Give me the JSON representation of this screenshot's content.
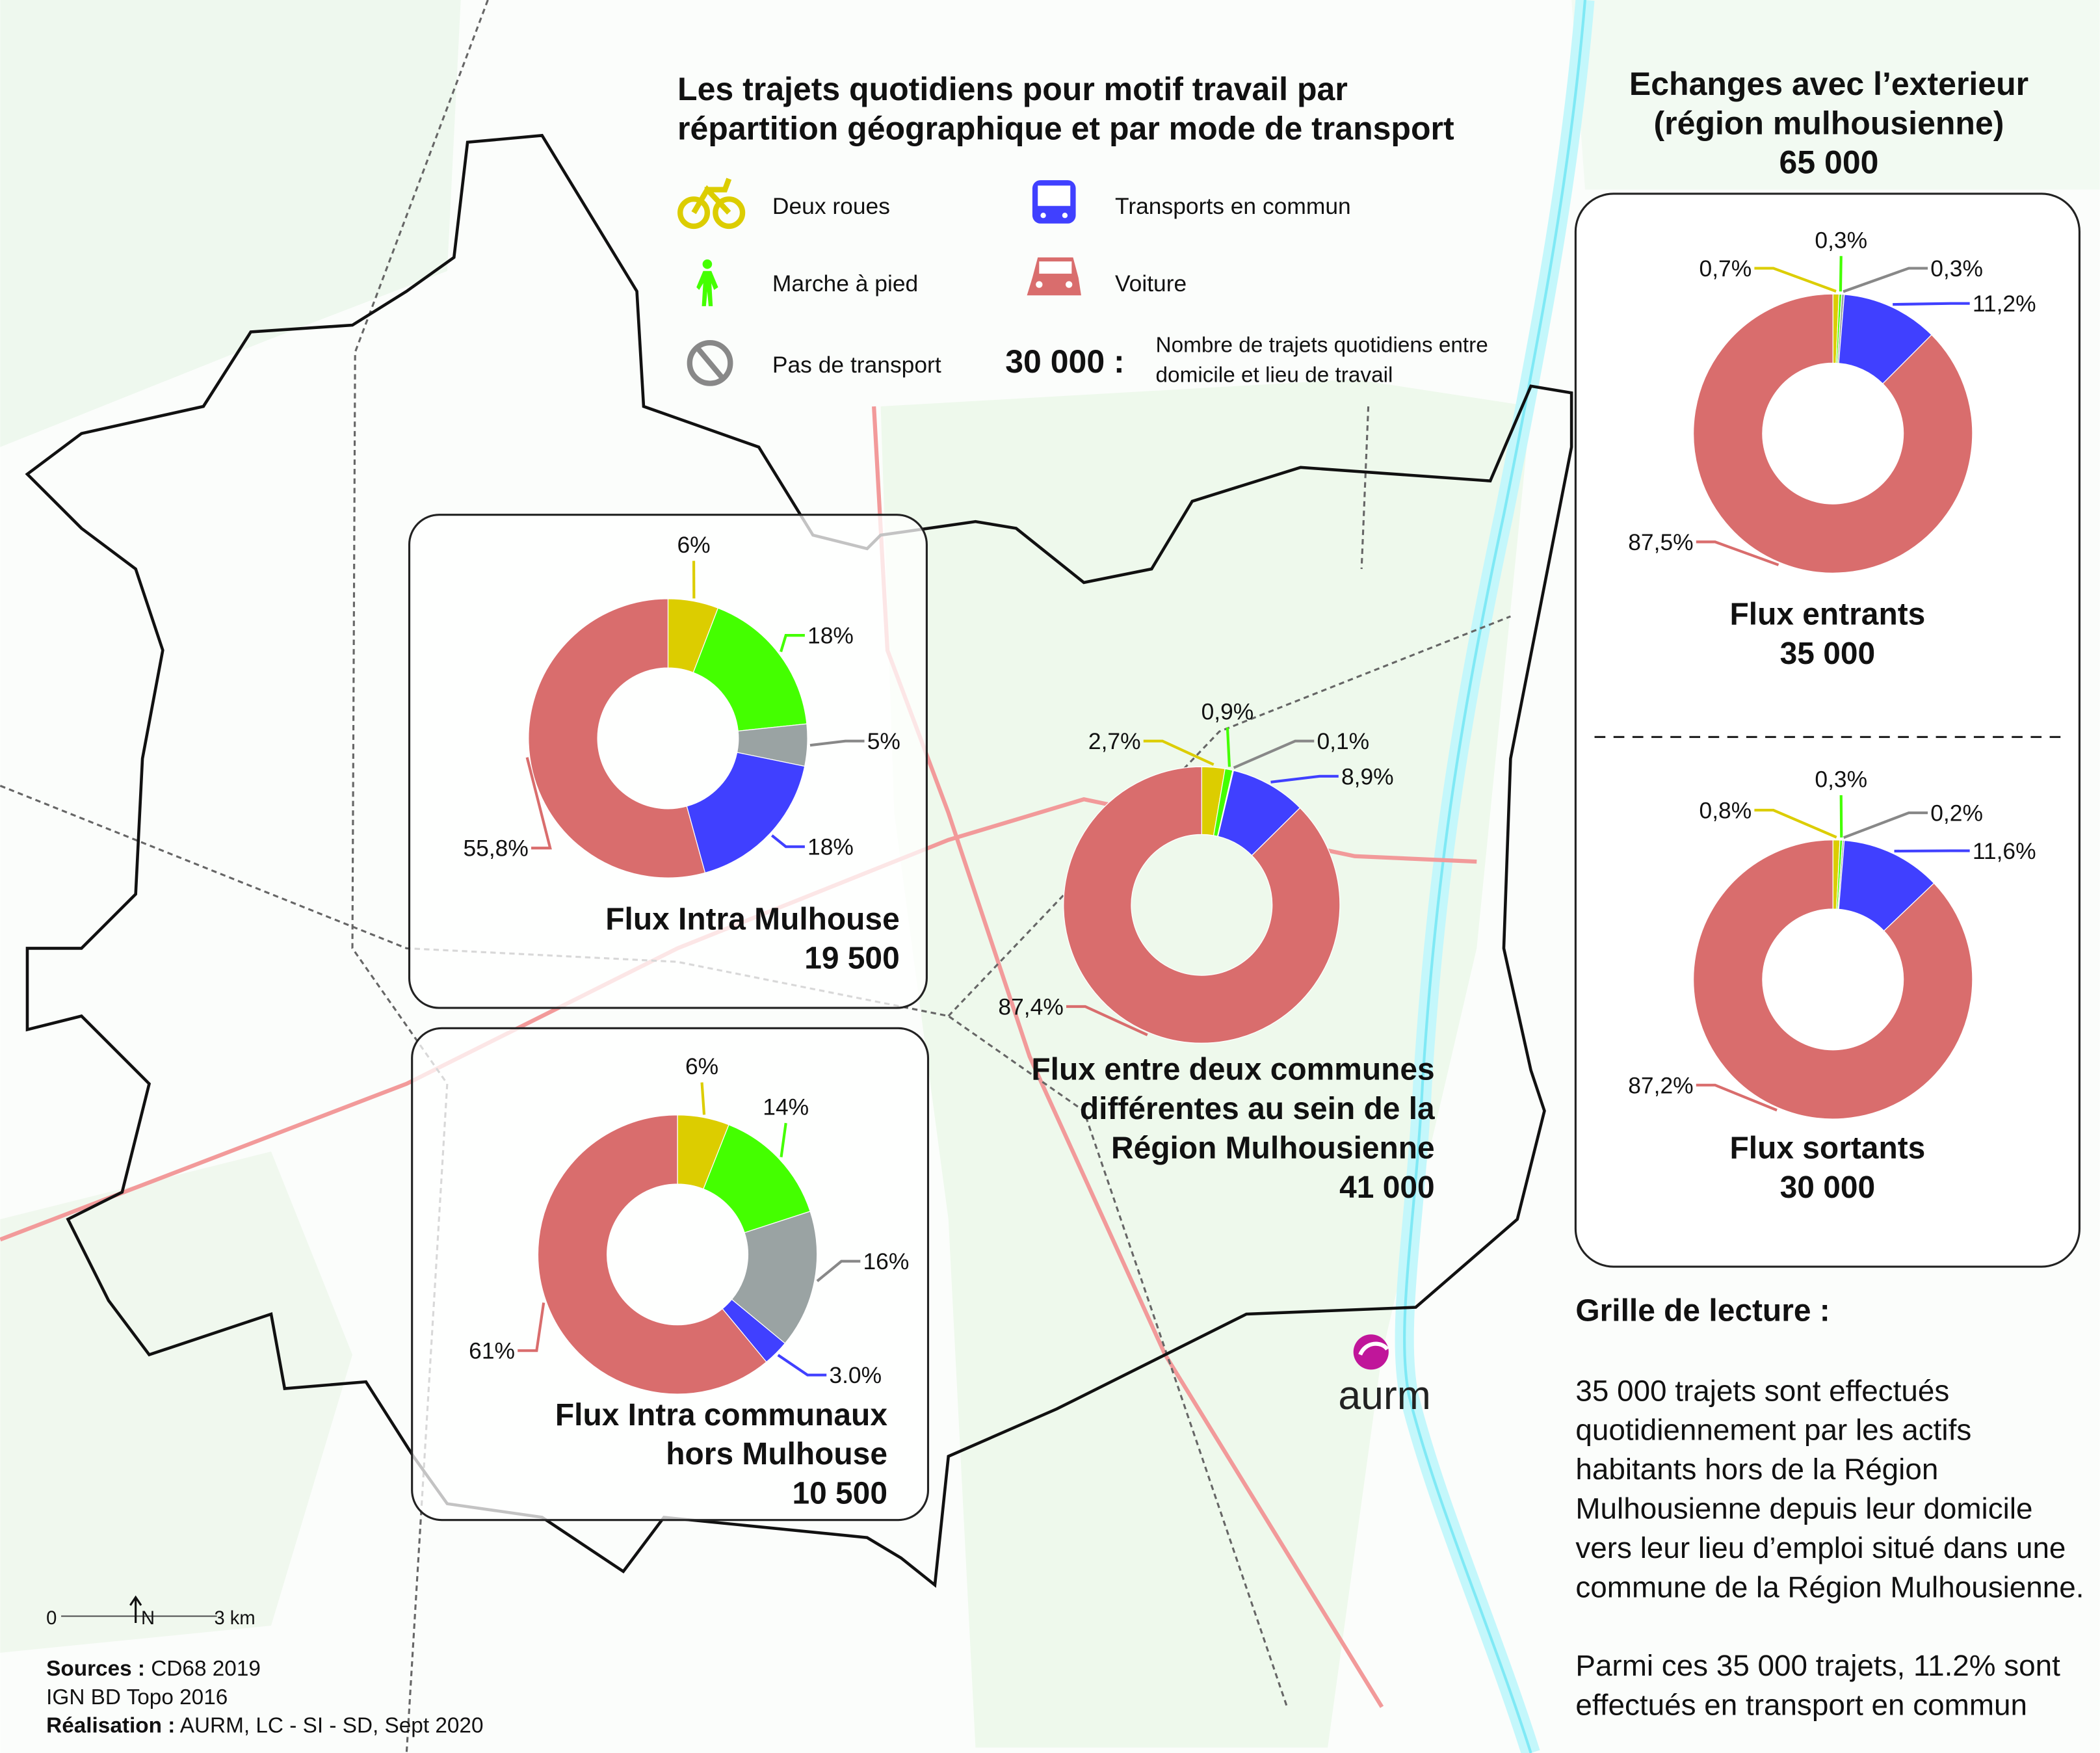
{
  "title": {
    "line1": "Les trajets quotidiens pour motif travail par",
    "line2": "répartition géographique et par mode de transport"
  },
  "legend": {
    "items": [
      {
        "label": "Deux roues",
        "icon": "bicycle-icon",
        "color": "#dccd00"
      },
      {
        "label": "Marche à pied",
        "icon": "pedestrian-icon",
        "color": "#44ff00"
      },
      {
        "label": "Pas de transport",
        "icon": "prohibited-icon",
        "color": "#888888"
      },
      {
        "label": "Transports en commun",
        "icon": "bus-icon",
        "color": "#4040ff"
      },
      {
        "label": "Voiture",
        "icon": "car-icon",
        "color": "#d96d6d"
      }
    ],
    "example_value": "30 000 :",
    "example_desc_line1": "Nombre de trajets quotidiens entre",
    "example_desc_line2": "domicile et lieu de travail"
  },
  "exterior": {
    "title_line1": "Echanges avec l’exterieur",
    "title_line2": "(région  mulhousienne)",
    "total": "65 000"
  },
  "chart_data": [
    {
      "type": "pie",
      "name": "intra-mulhouse",
      "title_lines": [
        "Flux Intra Mulhouse"
      ],
      "total": "19 500",
      "categories": [
        "Deux roues",
        "Marche à pied",
        "Pas de transport",
        "Transports en commun",
        "Voiture"
      ],
      "values": [
        6,
        18,
        5,
        18,
        55.8
      ],
      "labels": [
        "6%",
        "18%",
        "5%",
        "18%",
        "55,8%"
      ]
    },
    {
      "type": "pie",
      "name": "intra-communaux",
      "title_lines": [
        "Flux Intra communaux",
        "hors Mulhouse"
      ],
      "total": "10 500",
      "categories": [
        "Deux roues",
        "Marche à pied",
        "Pas de transport",
        "Transports en commun",
        "Voiture"
      ],
      "values": [
        6,
        14,
        16,
        3.0,
        61
      ],
      "labels": [
        "6%",
        "14%",
        "16%",
        "3.0%",
        "61%"
      ]
    },
    {
      "type": "pie",
      "name": "entre-communes",
      "title_lines": [
        "Flux entre deux communes",
        "différentes au sein de la",
        "Région Mulhousienne"
      ],
      "total": "41 000",
      "categories": [
        "Deux roues",
        "Marche à pied",
        "Pas de transport",
        "Transports en commun",
        "Voiture"
      ],
      "values": [
        2.7,
        0.9,
        0.1,
        8.9,
        87.4
      ],
      "labels": [
        "2,7%",
        "0,9%",
        "0,1%",
        "8,9%",
        "87,4%"
      ]
    },
    {
      "type": "pie",
      "name": "flux-entrants",
      "title_lines": [
        "Flux entrants"
      ],
      "total": "35 000",
      "categories": [
        "Deux roues",
        "Marche à pied",
        "Pas de transport",
        "Transports en commun",
        "Voiture"
      ],
      "values": [
        0.7,
        0.3,
        0.3,
        11.2,
        87.5
      ],
      "labels": [
        "0,7%",
        "0,3%",
        "0,3%",
        "11,2%",
        "87,5%"
      ]
    },
    {
      "type": "pie",
      "name": "flux-sortants",
      "title_lines": [
        "Flux sortants"
      ],
      "total": "30 000",
      "categories": [
        "Deux roues",
        "Marche à pied",
        "Pas de transport",
        "Transports en commun",
        "Voiture"
      ],
      "values": [
        0.8,
        0.3,
        0.2,
        11.6,
        87.2
      ],
      "labels": [
        "0,8%",
        "0,3%",
        "0,2%",
        "11,6%",
        "87,2%"
      ]
    }
  ],
  "colors": [
    "#dccd00",
    "#44ff00",
    "#9aa3a3",
    "#4040ff",
    "#d96d6d"
  ],
  "reading_guide": {
    "title": "Grille de lecture :",
    "lines": [
      "35 000 trajets sont effectués",
      "quotidiennement par les actifs",
      "habitants hors de la Région",
      "Mulhousienne depuis leur domicile",
      "vers leur lieu d’emploi situé dans une",
      "commune de la Région Mulhousienne.",
      "",
      "Parmi ces 35 000 trajets, 11.2% sont",
      "effectués en transport en commun"
    ]
  },
  "scale": {
    "zero": "0",
    "north": "N",
    "distance": "3 km"
  },
  "sources": {
    "line1_label": "Sources :",
    "line1_value": " CD68 2019",
    "line2": "IGN BD Topo 2016",
    "line3_label": "Réalisation :",
    "line3_value": " AURM, LC - SI - SD,  Sept 2020"
  },
  "logo": {
    "text": "aurm"
  }
}
